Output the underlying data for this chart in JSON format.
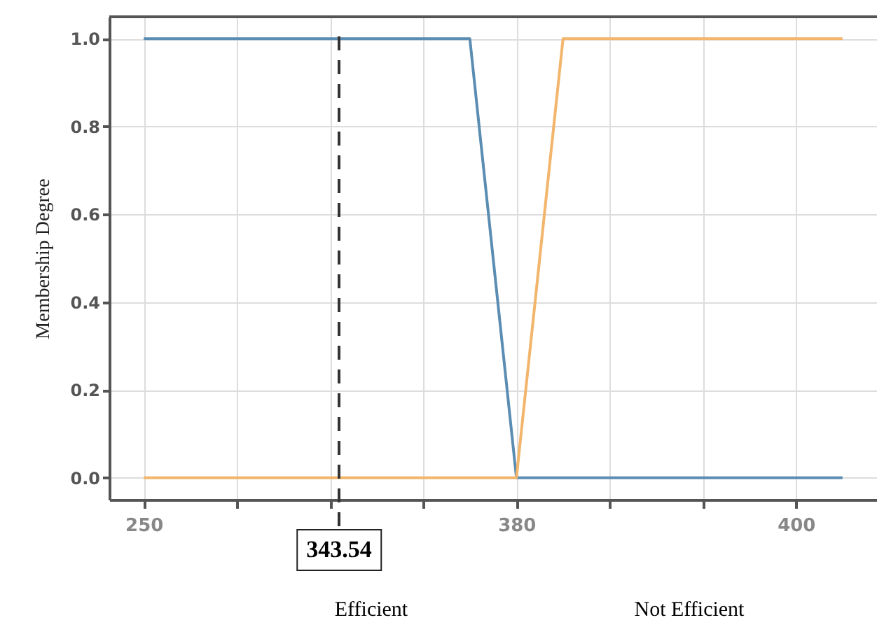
{
  "chart_data": {
    "type": "line",
    "ylabel": "Membership Degree",
    "annotations": [
      "343.54",
      "Efficient",
      "Not Efficient"
    ],
    "categories": [
      "250",
      null,
      null,
      null,
      null,
      null,
      null,
      null,
      "380",
      null,
      null,
      null,
      null,
      null,
      "400",
      null
    ],
    "series": [
      {
        "color": "#5b8db3",
        "values": [
          1,
          1,
          1,
          1,
          1,
          1,
          1,
          1,
          0,
          0,
          0,
          0,
          0,
          0,
          0,
          0
        ]
      },
      {
        "color": "#f2b56b",
        "values": [
          0,
          0,
          0,
          0,
          0,
          0,
          0,
          0,
          0,
          1,
          1,
          1,
          1,
          1,
          1,
          1
        ]
      }
    ],
    "ylim": [
      -0.05,
      1.05
    ],
    "yticks": [
      {
        "value": 0,
        "label": "0.0"
      },
      0.2,
      0.4,
      0.6,
      0.8,
      {
        "value": 1,
        "label": "1.0"
      }
    ],
    "grid": true,
    "line_style": "solid",
    "marker": "none"
  }
}
